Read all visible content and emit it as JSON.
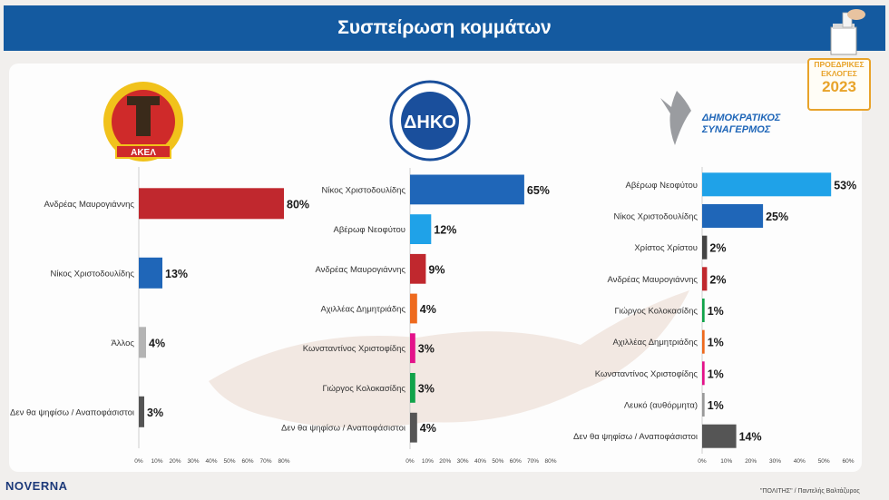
{
  "header": {
    "title": "Συσπείρωση κομμάτων"
  },
  "badge": {
    "line1": "ΠΡΟΕΔΡΙΚΕΣ",
    "line2": "ΕΚΛΟΓΕΣ",
    "year": "2023"
  },
  "footer": {
    "logo": "NOVERNA",
    "credit": "\"ΠΟΛΙΤΗΣ\" / Παντελής Βαλτάζυρος"
  },
  "party_logos": {
    "akel": "ΑΚΕΛ",
    "diko": "ΔΗΚΟ",
    "disy_line1": "ΔΗΜΟΚΡΑΤΙΚΟΣ",
    "disy_line2": "ΣΥΝΑΓΕΡΜΟΣ"
  },
  "colors": {
    "header": "#145aa0",
    "red": "#c0282e",
    "blue": "#1f66b8",
    "lightblue": "#1fa2e8",
    "gray": "#9a9a9a",
    "darkgray": "#555555",
    "orange": "#ee6a1e",
    "magenta": "#e3128a",
    "green": "#11a34a",
    "badge": "#e8a32a"
  },
  "chart_data": [
    {
      "type": "bar",
      "orientation": "horizontal",
      "categories": [
        "Ανδρέας Μαυρογιάννης",
        "Νίκος Χριστοδουλίδης",
        "Άλλος",
        "Δεν θα ψηφίσω / Αναποφάσιστοι"
      ],
      "values": [
        80,
        13,
        4,
        3
      ],
      "value_labels": [
        "80%",
        "13%",
        "4%",
        "3%"
      ],
      "bar_colors": [
        "#c0282e",
        "#1f66b8",
        "#b4b4b4",
        "#555555"
      ],
      "xlim": [
        0,
        80
      ],
      "xticks": [
        "0%",
        "10%",
        "20%",
        "30%",
        "40%",
        "50%",
        "60%",
        "70%",
        "80%"
      ]
    },
    {
      "type": "bar",
      "orientation": "horizontal",
      "categories": [
        "Νίκος Χριστοδουλίδης",
        "Αβέρωφ Νεοφύτου",
        "Ανδρέας Μαυρογιάννης",
        "Αχιλλέας Δημητριάδης",
        "Κωνσταντίνος Χριστοφίδης",
        "Γιώργος Κολοκασίδης",
        "Δεν θα ψηφίσω / Αναποφάσιστοι"
      ],
      "values": [
        65,
        12,
        9,
        4,
        3,
        3,
        4
      ],
      "value_labels": [
        "65%",
        "12%",
        "9%",
        "4%",
        "3%",
        "3%",
        "4%"
      ],
      "bar_colors": [
        "#1f66b8",
        "#1fa2e8",
        "#c0282e",
        "#ee6a1e",
        "#e3128a",
        "#11a34a",
        "#555555"
      ],
      "xlim": [
        0,
        80
      ],
      "xticks": [
        "0%",
        "10%",
        "20%",
        "30%",
        "40%",
        "50%",
        "60%",
        "70%",
        "80%"
      ]
    },
    {
      "type": "bar",
      "orientation": "horizontal",
      "categories": [
        "Αβέρωφ Νεοφύτου",
        "Νίκος Χριστοδουλίδης",
        "Χρίστος Χρίστου",
        "Ανδρέας Μαυρογιάννης",
        "Γιώργος Κολοκασίδης",
        "Αχιλλέας Δημητριάδης",
        "Κωνσταντίνος Χριστοφίδης",
        "Λευκό (αυθόρμητα)",
        "Δεν θα ψηφίσω / Αναποφάσιστοι"
      ],
      "values": [
        53,
        25,
        2,
        2,
        1,
        1,
        1,
        1,
        14
      ],
      "value_labels": [
        "53%",
        "25%",
        "2%",
        "2%",
        "1%",
        "1%",
        "1%",
        "1%",
        "14%"
      ],
      "bar_colors": [
        "#1fa2e8",
        "#1f66b8",
        "#444444",
        "#c0282e",
        "#11a34a",
        "#ee6a1e",
        "#e3128a",
        "#9a9a9a",
        "#555555"
      ],
      "xlim": [
        0,
        60
      ],
      "xticks": [
        "0%",
        "10%",
        "20%",
        "30%",
        "40%",
        "50%",
        "60%"
      ]
    }
  ]
}
